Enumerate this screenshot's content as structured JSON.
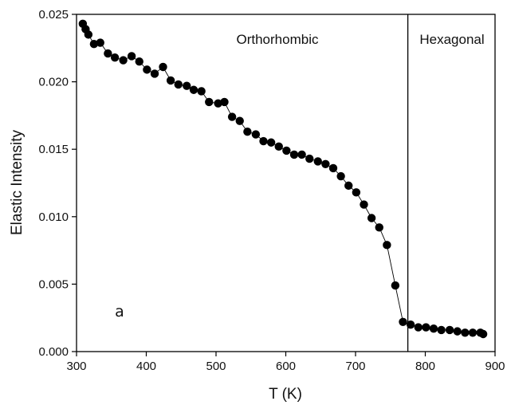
{
  "chart_data": {
    "type": "scatter",
    "title": "",
    "xlabel": "T (K)",
    "ylabel": "Elastic Intensity",
    "xlim": [
      300,
      900
    ],
    "ylim": [
      0,
      0.025
    ],
    "xticks": [
      300,
      400,
      500,
      600,
      700,
      800,
      900
    ],
    "yticks": [
      0.0,
      0.005,
      0.01,
      0.015,
      0.02,
      0.025
    ],
    "xtick_labels": [
      "300",
      "400",
      "500",
      "600",
      "700",
      "800",
      "900"
    ],
    "ytick_labels": [
      "0.000",
      "0.005",
      "0.010",
      "0.015",
      "0.020",
      "0.025"
    ],
    "grid": false,
    "marker": "filled-circle",
    "line": "thin-connecting-line",
    "color": "#000000",
    "series": [
      {
        "x": [
          309,
          313,
          317,
          325,
          334,
          345,
          355,
          367,
          379,
          390,
          401,
          412,
          424,
          435,
          446,
          458,
          468,
          479,
          490,
          503,
          512,
          523,
          534,
          545,
          557,
          568,
          579,
          590,
          601,
          612,
          623,
          634,
          646,
          657,
          668,
          679,
          690,
          701,
          712,
          723,
          734,
          745,
          757,
          768,
          779,
          790,
          801,
          812,
          823,
          835,
          846,
          857,
          868,
          879,
          883
        ],
        "y": [
          0.0243,
          0.0239,
          0.0235,
          0.0228,
          0.0229,
          0.0221,
          0.0218,
          0.0216,
          0.0219,
          0.0215,
          0.0209,
          0.0206,
          0.0211,
          0.0201,
          0.0198,
          0.0197,
          0.0194,
          0.0193,
          0.0185,
          0.0184,
          0.0185,
          0.0174,
          0.0171,
          0.0163,
          0.0161,
          0.0156,
          0.0155,
          0.0152,
          0.0149,
          0.0146,
          0.0146,
          0.0143,
          0.0141,
          0.0139,
          0.0136,
          0.013,
          0.0123,
          0.0118,
          0.0109,
          0.0099,
          0.0092,
          0.0079,
          0.0049,
          0.0022,
          0.002,
          0.0018,
          0.0018,
          0.0017,
          0.0016,
          0.0016,
          0.0015,
          0.0014,
          0.0014,
          0.0014,
          0.0013
        ]
      }
    ],
    "phase_boundary_x": 775,
    "annotations": {
      "left_region": "Orthorhombic",
      "right_region": "Hexagonal",
      "panel_label": "a"
    }
  }
}
